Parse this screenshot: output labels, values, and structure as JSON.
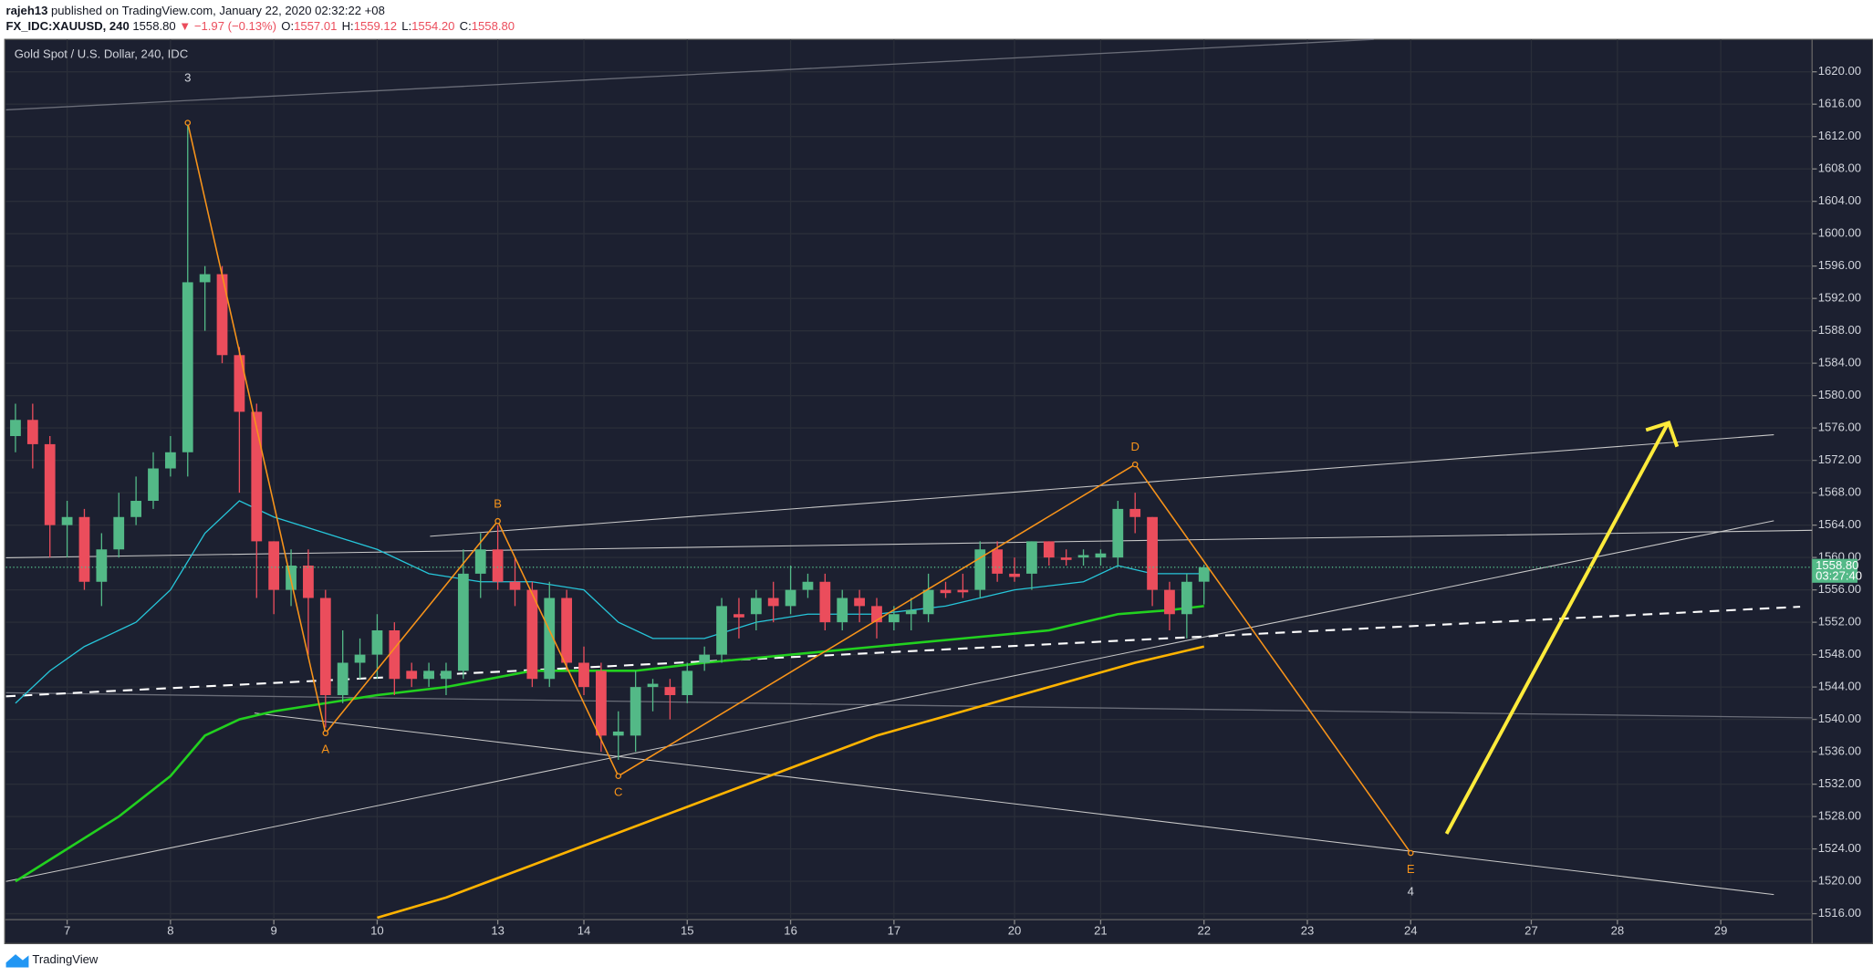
{
  "header": {
    "author": "rajeh13",
    "published": "published on TradingView.com, January 22, 2020 02:32:22 +08",
    "symbol": "FX_IDC:XAUUSD, 240",
    "last": "1558.80",
    "change": "▼ −1.97 (−0.13%)",
    "ohlc": [
      {
        "key": "O:",
        "value": "1557.01"
      },
      {
        "key": "H:",
        "value": "1559.12"
      },
      {
        "key": "L:",
        "value": "1554.20"
      },
      {
        "key": "C:",
        "value": "1558.80"
      }
    ]
  },
  "chart_data": {
    "type": "candlestick",
    "title": "Gold Spot / U.S. Dollar, 240, IDC",
    "up_color": "#53b987",
    "down_color": "#eb4d5c",
    "grid": true,
    "xlim": [
      -0.55,
      104.3
    ],
    "ylim": [
      1515.26,
      1624.0
    ],
    "xticks": [
      {
        "value": 3,
        "label": "7"
      },
      {
        "value": 9,
        "label": "8"
      },
      {
        "value": 15,
        "label": "9"
      },
      {
        "value": 21,
        "label": "10"
      },
      {
        "value": 28,
        "label": "13"
      },
      {
        "value": 33,
        "label": "14"
      },
      {
        "value": 39,
        "label": "15"
      },
      {
        "value": 45,
        "label": "16"
      },
      {
        "value": 51,
        "label": "17"
      },
      {
        "value": 58,
        "label": "20"
      },
      {
        "value": 63,
        "label": "21"
      },
      {
        "value": 69,
        "label": "22"
      },
      {
        "value": 75,
        "label": "23"
      },
      {
        "value": 81,
        "label": "24"
      },
      {
        "value": 88,
        "label": "27"
      },
      {
        "value": 93,
        "label": "28"
      },
      {
        "value": 99,
        "label": "29"
      }
    ],
    "yticks": [
      {
        "value": 1516,
        "label": "1516.00"
      },
      {
        "value": 1520,
        "label": "1520.00"
      },
      {
        "value": 1524,
        "label": "1524.00"
      },
      {
        "value": 1528,
        "label": "1528.00"
      },
      {
        "value": 1532,
        "label": "1532.00"
      },
      {
        "value": 1536,
        "label": "1536.00"
      },
      {
        "value": 1540,
        "label": "1540.00"
      },
      {
        "value": 1544,
        "label": "1544.00"
      },
      {
        "value": 1548,
        "label": "1548.00"
      },
      {
        "value": 1552,
        "label": "1552.00"
      },
      {
        "value": 1556,
        "label": "1556.00"
      },
      {
        "value": 1560,
        "label": "1560.00"
      },
      {
        "value": 1564,
        "label": "1564.00"
      },
      {
        "value": 1568,
        "label": "1568.00"
      },
      {
        "value": 1572,
        "label": "1572.00"
      },
      {
        "value": 1576,
        "label": "1576.00"
      },
      {
        "value": 1580,
        "label": "1580.00"
      },
      {
        "value": 1584,
        "label": "1584.00"
      },
      {
        "value": 1588,
        "label": "1588.00"
      },
      {
        "value": 1592,
        "label": "1592.00"
      },
      {
        "value": 1596,
        "label": "1596.00"
      },
      {
        "value": 1600,
        "label": "1600.00"
      },
      {
        "value": 1604,
        "label": "1604.00"
      },
      {
        "value": 1608,
        "label": "1608.00"
      },
      {
        "value": 1612,
        "label": "1612.00"
      },
      {
        "value": 1616,
        "label": "1616.00"
      },
      {
        "value": 1620,
        "label": "1620.00"
      }
    ],
    "candles": {
      "open": [
        1575,
        1577,
        1574,
        1564,
        1565,
        1557,
        1561,
        1565,
        1567,
        1571,
        1573,
        1594,
        1595,
        1585,
        1578,
        1562,
        1556,
        1559,
        1555,
        1543,
        1547,
        1548,
        1551,
        1546,
        1545,
        1545,
        1546,
        1558,
        1561,
        1557,
        1556,
        1545,
        1555,
        1547,
        1546,
        1538,
        1538,
        1544,
        1544,
        1543,
        1547,
        1548,
        1553,
        1553,
        1555,
        1554,
        1556,
        1557,
        1552,
        1555,
        1554,
        1552,
        1553,
        1553,
        1556,
        1556,
        1556,
        1561,
        1558,
        1558,
        1562,
        1560,
        1560,
        1560,
        1560,
        1566,
        1565,
        1556,
        1553,
        1557.01
      ],
      "high": [
        1579,
        1579,
        1575,
        1567,
        1566,
        1563,
        1568,
        1570,
        1573,
        1575,
        1614,
        1596,
        1596,
        1586,
        1579,
        1562,
        1561,
        1561,
        1556,
        1551,
        1550,
        1553,
        1552,
        1547,
        1547,
        1547,
        1561,
        1563,
        1564,
        1560,
        1557,
        1557,
        1556,
        1549,
        1547,
        1541,
        1546,
        1545,
        1545,
        1547,
        1549,
        1555,
        1555,
        1556,
        1557,
        1559,
        1558,
        1558,
        1556,
        1556,
        1555,
        1554,
        1555,
        1558,
        1557,
        1558,
        1562,
        1562,
        1560,
        1562,
        1562,
        1561,
        1561,
        1561,
        1567,
        1568,
        1565,
        1557,
        1558,
        1559.12
      ],
      "low": [
        1573,
        1571,
        1560,
        1560,
        1556,
        1554,
        1560,
        1564,
        1566,
        1570,
        1570,
        1588,
        1584,
        1568,
        1555,
        1553,
        1554,
        1548,
        1539,
        1542,
        1545,
        1545,
        1543,
        1544,
        1544,
        1543,
        1545,
        1555,
        1556,
        1554,
        1544,
        1544,
        1546,
        1543,
        1536,
        1535,
        1536,
        1541,
        1540,
        1542,
        1546,
        1547,
        1550,
        1551,
        1552,
        1553,
        1555,
        1551,
        1551,
        1552,
        1550,
        1551,
        1551,
        1552,
        1555,
        1555,
        1555,
        1557,
        1557,
        1556,
        1559,
        1559,
        1559,
        1559,
        1559,
        1563,
        1554,
        1551,
        1550,
        1554.2
      ],
      "close": [
        1577,
        1574,
        1564,
        1565,
        1557,
        1561,
        1565,
        1567,
        1571,
        1573,
        1594,
        1595,
        1585,
        1578,
        1562,
        1556,
        1559,
        1555,
        1543,
        1547,
        1548,
        1551,
        1545,
        1545,
        1546,
        1546,
        1558,
        1561,
        1557,
        1556,
        1545,
        1555,
        1547,
        1544,
        1538,
        1538.5,
        1544,
        1544.4,
        1543,
        1546,
        1548,
        1554,
        1552.6,
        1555,
        1554,
        1556,
        1557,
        1552,
        1555,
        1554,
        1552,
        1553,
        1553.5,
        1556,
        1555.6,
        1555.7,
        1561,
        1558,
        1557.6,
        1562,
        1560,
        1559.7,
        1560.3,
        1560.5,
        1566,
        1565,
        1556,
        1553,
        1557,
        1558.8
      ]
    },
    "overlays": [
      {
        "color": "#26c6da",
        "x": [
          0,
          2,
          4,
          7,
          9,
          11,
          13,
          15,
          18,
          21,
          24,
          27,
          30,
          33,
          35,
          37,
          40,
          43,
          46,
          50,
          54,
          58,
          62,
          64,
          66,
          69
        ],
        "values": [
          1542,
          1546,
          1549,
          1552,
          1556,
          1563,
          1567,
          1565,
          1563,
          1561,
          1558,
          1557,
          1557,
          1556,
          1552,
          1550,
          1550,
          1552,
          1553,
          1553,
          1554,
          1556,
          1557,
          1559,
          1558,
          1558
        ]
      },
      {
        "color": "#22d11f",
        "x": [
          0,
          3,
          6,
          9,
          11,
          13,
          15,
          18,
          21,
          25,
          30,
          33,
          36,
          40,
          45,
          50,
          55,
          60,
          64,
          67,
          69
        ],
        "values": [
          1520,
          1524,
          1528,
          1533,
          1538,
          1540,
          1541,
          1542,
          1543,
          1544,
          1546,
          1546,
          1546,
          1547,
          1548,
          1549,
          1550,
          1551,
          1553,
          1553.5,
          1554
        ]
      },
      {
        "color": "#ffb300",
        "x": [
          21,
          25,
          30,
          35,
          40,
          45,
          50,
          55,
          60,
          65,
          69
        ],
        "values": [
          1515.5,
          1518,
          1522,
          1526,
          1530,
          1534,
          1538,
          1541,
          1544,
          1547,
          1549
        ]
      }
    ],
    "pattern": {
      "color": "#f7931a",
      "x": [
        10,
        18,
        28,
        35,
        65,
        81
      ],
      "values": [
        1613.7,
        1538.3,
        1564.5,
        1533,
        1571.5,
        1523.5
      ],
      "labels": [
        "A",
        "B",
        "C",
        "D",
        "E"
      ],
      "wave_labels": [
        "3",
        "4"
      ]
    },
    "last_price_label": "1558.80",
    "countdown": "03:27:40"
  },
  "footer": {
    "brand": "TradingView"
  }
}
